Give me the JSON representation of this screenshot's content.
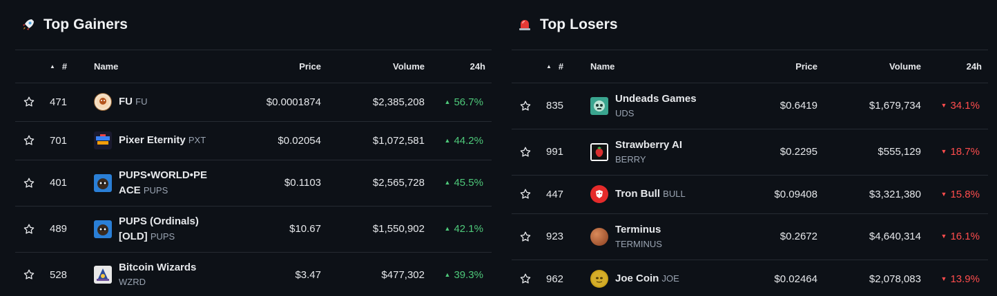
{
  "columns": {
    "rank": "#",
    "name": "Name",
    "price": "Price",
    "volume": "Volume",
    "change": "24h"
  },
  "gainers": {
    "title": "Top Gainers",
    "icon": "rocket-icon",
    "rows": [
      {
        "rank": "471",
        "name": "FU",
        "symbol": "FU",
        "price": "$0.0001874",
        "volume": "$2,385,208",
        "change": "56.7%",
        "icon_color": "#f4e1c8"
      },
      {
        "rank": "701",
        "name": "Pixer Eternity",
        "symbol": "PXT",
        "price": "$0.02054",
        "volume": "$1,072,581",
        "change": "44.2%",
        "icon_color": "#1a1a2e"
      },
      {
        "rank": "401",
        "name": "PUPS•WORLD•PE",
        "name2": "ACE",
        "symbol": "PUPS",
        "price": "$0.1103",
        "volume": "$2,565,728",
        "change": "45.5%",
        "icon_color": "#2a7fd6"
      },
      {
        "rank": "489",
        "name": "PUPS (Ordinals)",
        "name2": "[OLD]",
        "symbol": "PUPS",
        "price": "$10.67",
        "volume": "$1,550,902",
        "change": "42.1%",
        "icon_color": "#2a7fd6"
      },
      {
        "rank": "528",
        "name": "Bitcoin Wizards",
        "symbol": "WZRD",
        "price": "$3.47",
        "volume": "$477,302",
        "change": "39.3%",
        "icon_color": "#e8e8e8"
      }
    ]
  },
  "losers": {
    "title": "Top Losers",
    "icon": "siren-icon",
    "rows": [
      {
        "rank": "835",
        "name": "Undeads Games",
        "symbol": "UDS",
        "price": "$0.6419",
        "volume": "$1,679,734",
        "change": "34.1%",
        "icon_color": "#3aa58f"
      },
      {
        "rank": "991",
        "name": "Strawberry AI",
        "symbol": "BERRY",
        "price": "$0.2295",
        "volume": "$555,129",
        "change": "18.7%",
        "icon_color": "#ffffff"
      },
      {
        "rank": "447",
        "name": "Tron Bull",
        "symbol": "BULL",
        "price": "$0.09408",
        "volume": "$3,321,380",
        "change": "15.8%",
        "icon_color": "#e52b2b"
      },
      {
        "rank": "923",
        "name": "Terminus",
        "symbol": "TERMINUS",
        "price": "$0.2672",
        "volume": "$4,640,314",
        "change": "16.1%",
        "icon_color": "#b5653a"
      },
      {
        "rank": "962",
        "name": "Joe Coin",
        "symbol": "JOE",
        "price": "$0.02464",
        "volume": "$2,078,083",
        "change": "13.9%",
        "icon_color": "#c9a21a"
      }
    ]
  },
  "colors": {
    "background": "#0d1117",
    "up": "#4ec97a",
    "down": "#ff4d4d",
    "divider": "#262b33"
  }
}
